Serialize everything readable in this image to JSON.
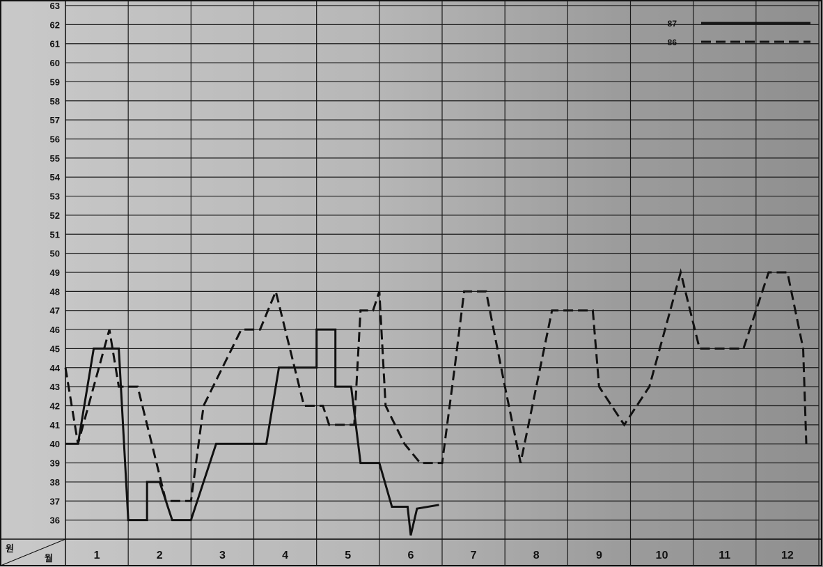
{
  "chart_data": {
    "type": "line",
    "x_tick_labels": [
      "1",
      "2",
      "3",
      "4",
      "5",
      "6",
      "7",
      "8",
      "9",
      "10",
      "11",
      "12"
    ],
    "y_tick_labels": [
      "36",
      "37",
      "38",
      "39",
      "40",
      "41",
      "42",
      "43",
      "44",
      "45",
      "46",
      "47",
      "48",
      "49",
      "50",
      "51",
      "52",
      "53",
      "54",
      "55",
      "56",
      "57",
      "58",
      "59",
      "60",
      "61",
      "62",
      "63"
    ],
    "ylim": [
      35,
      63
    ],
    "xlim": [
      0.5,
      12.5
    ],
    "corner_label_row": "원",
    "corner_label_col": "월",
    "grid": true,
    "legend_position": "top-right",
    "series": [
      {
        "name": "87",
        "style": "solid",
        "color": "#111111",
        "points": [
          [
            0.5,
            40
          ],
          [
            0.7,
            40
          ],
          [
            0.95,
            45
          ],
          [
            1.35,
            45
          ],
          [
            1.5,
            36
          ],
          [
            1.8,
            36
          ],
          [
            1.8,
            38
          ],
          [
            2.0,
            38
          ],
          [
            2.2,
            36
          ],
          [
            2.5,
            36
          ],
          [
            2.9,
            40
          ],
          [
            3.5,
            40
          ],
          [
            3.7,
            40
          ],
          [
            3.9,
            44
          ],
          [
            4.2,
            44
          ],
          [
            4.5,
            44
          ],
          [
            4.5,
            46
          ],
          [
            4.8,
            46
          ],
          [
            4.8,
            43
          ],
          [
            5.05,
            43
          ],
          [
            5.2,
            39
          ],
          [
            5.5,
            39
          ],
          [
            5.7,
            36.7
          ],
          [
            5.95,
            36.7
          ],
          [
            6.0,
            35.2
          ],
          [
            6.1,
            36.6
          ],
          [
            6.45,
            36.8
          ]
        ]
      },
      {
        "name": "86",
        "style": "dashed",
        "color": "#111111",
        "points": [
          [
            0.5,
            44
          ],
          [
            0.7,
            40
          ],
          [
            1.2,
            46
          ],
          [
            1.35,
            43
          ],
          [
            1.65,
            43
          ],
          [
            2.1,
            37
          ],
          [
            2.2,
            37
          ],
          [
            2.5,
            37
          ],
          [
            2.7,
            42
          ],
          [
            3.3,
            46
          ],
          [
            3.6,
            46
          ],
          [
            3.85,
            48
          ],
          [
            4.3,
            42
          ],
          [
            4.6,
            42
          ],
          [
            4.7,
            41
          ],
          [
            5.1,
            41
          ],
          [
            5.2,
            47
          ],
          [
            5.4,
            47
          ],
          [
            5.5,
            48
          ],
          [
            5.6,
            42
          ],
          [
            5.9,
            40
          ],
          [
            6.15,
            39
          ],
          [
            6.5,
            39
          ],
          [
            6.7,
            44
          ],
          [
            6.85,
            48
          ],
          [
            7.2,
            48
          ],
          [
            7.5,
            43
          ],
          [
            7.75,
            39
          ],
          [
            8.25,
            47
          ],
          [
            8.9,
            47
          ],
          [
            9.0,
            43
          ],
          [
            9.2,
            42
          ],
          [
            9.4,
            41
          ],
          [
            9.8,
            43
          ],
          [
            10.3,
            49
          ],
          [
            10.6,
            45
          ],
          [
            11.0,
            45
          ],
          [
            11.3,
            45
          ],
          [
            11.7,
            49
          ],
          [
            12.0,
            49
          ],
          [
            12.25,
            45
          ],
          [
            12.3,
            40
          ]
        ]
      }
    ]
  }
}
